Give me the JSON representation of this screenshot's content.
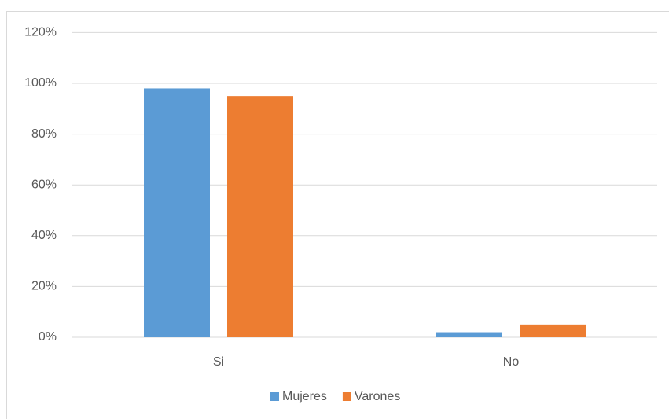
{
  "chart_data": {
    "type": "bar",
    "categories": [
      "Si",
      "No"
    ],
    "series": [
      {
        "name": "Mujeres",
        "color": "#5b9bd5",
        "values": [
          98,
          2
        ]
      },
      {
        "name": "Varones",
        "color": "#ed7d31",
        "values": [
          95,
          5
        ]
      }
    ],
    "ylim": [
      0,
      120
    ],
    "yticks": [
      {
        "value": 0,
        "label": "0%"
      },
      {
        "value": 20,
        "label": "20%"
      },
      {
        "value": 40,
        "label": "40%"
      },
      {
        "value": 60,
        "label": "60%"
      },
      {
        "value": 80,
        "label": "80%"
      },
      {
        "value": 100,
        "label": "100%"
      },
      {
        "value": 120,
        "label": "120%"
      }
    ],
    "grid": true,
    "legend": "bottom"
  }
}
